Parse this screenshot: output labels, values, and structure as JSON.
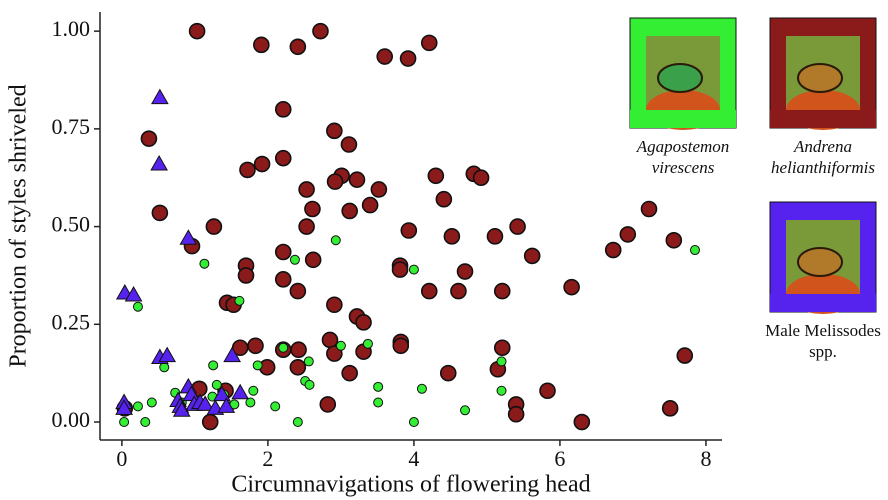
{
  "chart_data": {
    "type": "scatter",
    "x_label": "Circumnavigations of flowering head",
    "y_label": "Proportion of styles shriveled",
    "xlim": [
      -0.3,
      8.22
    ],
    "ylim": [
      -0.046,
      1.049
    ],
    "xticks": [
      0,
      2,
      4,
      6,
      8
    ],
    "yticks": [
      {
        "value": 0,
        "label": "0.00"
      },
      {
        "value": 0.25,
        "label": "0.25"
      },
      {
        "value": 0.5,
        "label": "0.50"
      },
      {
        "value": 0.75,
        "label": "0.75"
      },
      {
        "value": 1,
        "label": "1.00"
      }
    ],
    "grid": false,
    "series": [
      {
        "name": "Agapostemon virescens",
        "color": "#33ee33",
        "marker": "small-circle",
        "x": [
          0.03,
          0.32,
          0.22,
          0.22,
          0.41,
          0.73,
          0.82,
          1.13,
          1.24,
          1.25,
          1.3,
          1.4,
          1.48,
          1.54,
          1.61,
          1.8,
          1.86,
          1.76,
          2.1,
          2.21,
          2.37,
          2.41,
          2.51,
          2.57,
          2.56,
          2.93,
          3.0,
          3.37,
          3.51,
          3.51,
          4.0,
          4.0,
          4.11,
          4.7,
          5.2,
          5.2,
          7.85,
          0.58
        ],
        "values": [
          0.0,
          0.0,
          0.04,
          0.295,
          0.05,
          0.075,
          0.05,
          0.405,
          0.065,
          0.145,
          0.095,
          0.07,
          0.04,
          0.045,
          0.31,
          0.08,
          0.145,
          0.05,
          0.04,
          0.19,
          0.415,
          0.0,
          0.105,
          0.095,
          0.155,
          0.465,
          0.195,
          0.2,
          0.09,
          0.05,
          0.39,
          0.0,
          0.085,
          0.03,
          0.155,
          0.08,
          0.44,
          0.14
        ]
      },
      {
        "name": "Andrena helianthiformis",
        "color": "#8b1a1a",
        "marker": "circle",
        "x": [
          1.03,
          1.91,
          2.41,
          2.72,
          3.6,
          3.92,
          4.21,
          2.21,
          0.37,
          2.91,
          3.11,
          1.92,
          2.21,
          1.72,
          3.22,
          3.01,
          2.92,
          3.52,
          2.53,
          4.3,
          4.82,
          4.92,
          4.41,
          3.4,
          3.12,
          2.61,
          0.52,
          7.22,
          2.53,
          1.26,
          3.93,
          4.52,
          5.11,
          5.42,
          6.93,
          7.56,
          0.96,
          5.62,
          6.73,
          2.62,
          1.7,
          1.7,
          2.21,
          2.21,
          3.81,
          3.81,
          4.7,
          2.41,
          4.21,
          4.61,
          5.21,
          6.16,
          1.44,
          1.53,
          2.91,
          3.22,
          3.31,
          1.62,
          1.83,
          2.21,
          2.42,
          2.85,
          2.91,
          3.31,
          3.82,
          3.82,
          5.21,
          1.99,
          2.41,
          3.12,
          4.47,
          5.15,
          7.71,
          1.42,
          1.06,
          2.82,
          5.83,
          5.4,
          5.4,
          0.04,
          1.21,
          6.3,
          7.51
        ],
        "values": [
          1.0,
          0.965,
          0.96,
          1.0,
          0.935,
          0.93,
          0.97,
          0.8,
          0.725,
          0.745,
          0.71,
          0.66,
          0.675,
          0.645,
          0.62,
          0.63,
          0.615,
          0.595,
          0.595,
          0.63,
          0.635,
          0.625,
          0.57,
          0.555,
          0.54,
          0.545,
          0.535,
          0.545,
          0.5,
          0.5,
          0.49,
          0.475,
          0.475,
          0.5,
          0.48,
          0.465,
          0.45,
          0.425,
          0.44,
          0.415,
          0.4,
          0.375,
          0.435,
          0.365,
          0.4,
          0.39,
          0.385,
          0.335,
          0.335,
          0.335,
          0.335,
          0.345,
          0.305,
          0.3,
          0.3,
          0.27,
          0.255,
          0.19,
          0.195,
          0.185,
          0.185,
          0.21,
          0.175,
          0.18,
          0.205,
          0.195,
          0.19,
          0.14,
          0.14,
          0.125,
          0.125,
          0.135,
          0.17,
          0.08,
          0.085,
          0.045,
          0.08,
          0.045,
          0.02,
          0.035,
          0.0,
          0.0,
          0.035
        ]
      },
      {
        "name": "Male Melissodes spp.",
        "color": "#5522ee",
        "marker": "triangle",
        "x": [
          0.52,
          0.51,
          0.04,
          0.16,
          0.91,
          0.52,
          0.62,
          0.03,
          0.03,
          0.77,
          0.8,
          0.91,
          0.95,
          0.99,
          1.07,
          1.14,
          1.28,
          1.37,
          1.43,
          1.51,
          1.62,
          0.82
        ],
        "values": [
          0.83,
          0.66,
          0.33,
          0.325,
          0.47,
          0.165,
          0.17,
          0.05,
          0.035,
          0.055,
          0.04,
          0.09,
          0.07,
          0.045,
          0.05,
          0.045,
          0.035,
          0.07,
          0.04,
          0.17,
          0.075,
          0.03
        ]
      }
    ]
  }
}
